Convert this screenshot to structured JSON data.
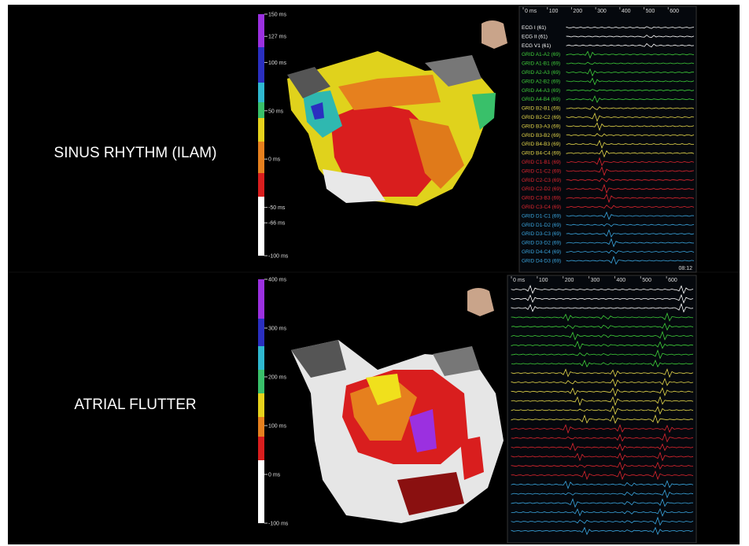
{
  "panels": [
    {
      "label": "SINUS RHYTHM (ILAM)",
      "scale_ticks": [
        {
          "value": 150,
          "label": "150 ms"
        },
        {
          "value": 127,
          "label": "127 ms"
        },
        {
          "value": 100,
          "label": "100 ms"
        },
        {
          "value": 50,
          "label": "50 ms"
        },
        {
          "value": 0,
          "label": "0 ms"
        },
        {
          "value": -50,
          "label": "-50 ms"
        },
        {
          "value": -66,
          "label": "-66 ms"
        },
        {
          "value": -100,
          "label": "-100 ms"
        }
      ],
      "time_ticks": [
        "0 ms",
        "100",
        "200",
        "300",
        "400",
        "500",
        "600"
      ],
      "clock": "08:12",
      "groups": [
        {
          "color": "#ffffff",
          "channels": [
            "ECG I (61)",
            "ECG II (61)",
            "ECG V1 (61)"
          ]
        },
        {
          "color": "#3fcf3a",
          "channels": [
            "GRID  A1-A2 (69)",
            "GRID  A1-B1 (69)",
            "GRID  A2-A3 (69)",
            "GRID  A2-B2 (69)",
            "GRID  A4-A3 (69)",
            "GRID  A4-B4 (69)"
          ]
        },
        {
          "color": "#e6d84a",
          "channels": [
            "GRID  B2-B1 (69)",
            "GRID  B2-C2 (69)",
            "GRID  B3-A3 (69)",
            "GRID  B3-B2 (69)",
            "GRID  B4-B3 (69)",
            "GRID  B4-C4 (69)"
          ]
        },
        {
          "color": "#e0262f",
          "channels": [
            "GRID  C1-B1 (69)",
            "GRID  C1-C2 (69)",
            "GRID  C2-C3 (69)",
            "GRID  C2-D2 (69)",
            "GRID  C3-B3 (69)",
            "GRID  C3-C4 (69)"
          ]
        },
        {
          "color": "#3aa6e0",
          "channels": [
            "GRID  D1-C1 (69)",
            "GRID  D1-D2 (69)",
            "GRID  D3-C3 (69)",
            "GRID  D3-D2 (69)",
            "GRID  D4-C4 (69)",
            "GRID  D4-D3 (69)"
          ]
        }
      ]
    },
    {
      "label": "ATRIAL FLUTTER",
      "scale_ticks": [
        {
          "value": 400,
          "label": "400 ms"
        },
        {
          "value": 300,
          "label": "300 ms"
        },
        {
          "value": 200,
          "label": "200 ms"
        },
        {
          "value": 100,
          "label": "100 ms"
        },
        {
          "value": 0,
          "label": "0 ms"
        },
        {
          "value": -100,
          "label": "-100 ms"
        }
      ],
      "time_ticks": [
        "0 ms",
        "100",
        "200",
        "300",
        "400",
        "500",
        "600"
      ]
    }
  ]
}
